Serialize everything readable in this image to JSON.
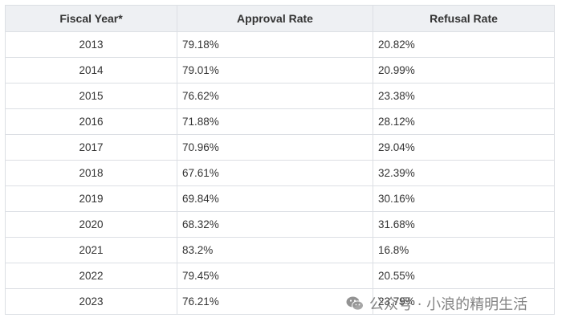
{
  "table": {
    "headers": [
      "Fiscal Year*",
      "Approval Rate",
      "Refusal Rate"
    ],
    "rows": [
      {
        "year": "2013",
        "approval": "79.18%",
        "refusal": "20.82%"
      },
      {
        "year": "2014",
        "approval": "79.01%",
        "refusal": "20.99%"
      },
      {
        "year": "2015",
        "approval": "76.62%",
        "refusal": "23.38%"
      },
      {
        "year": "2016",
        "approval": "71.88%",
        "refusal": "28.12%"
      },
      {
        "year": "2017",
        "approval": "70.96%",
        "refusal": "29.04%"
      },
      {
        "year": "2018",
        "approval": "67.61%",
        "refusal": "32.39%"
      },
      {
        "year": "2019",
        "approval": "69.84%",
        "refusal": "30.16%"
      },
      {
        "year": "2020",
        "approval": "68.32%",
        "refusal": "31.68%"
      },
      {
        "year": "2021",
        "approval": "83.2%",
        "refusal": "16.8%"
      },
      {
        "year": "2022",
        "approval": "79.45%",
        "refusal": "20.55%"
      },
      {
        "year": "2023",
        "approval": "76.21%",
        "refusal": "23.79%"
      }
    ]
  },
  "watermark": {
    "text": "公众号 · 小浪的精明生活",
    "icon": "wechat-icon"
  },
  "colors": {
    "header_bg": "#eef0f3",
    "border": "#dcdfe4",
    "text": "#333333"
  }
}
